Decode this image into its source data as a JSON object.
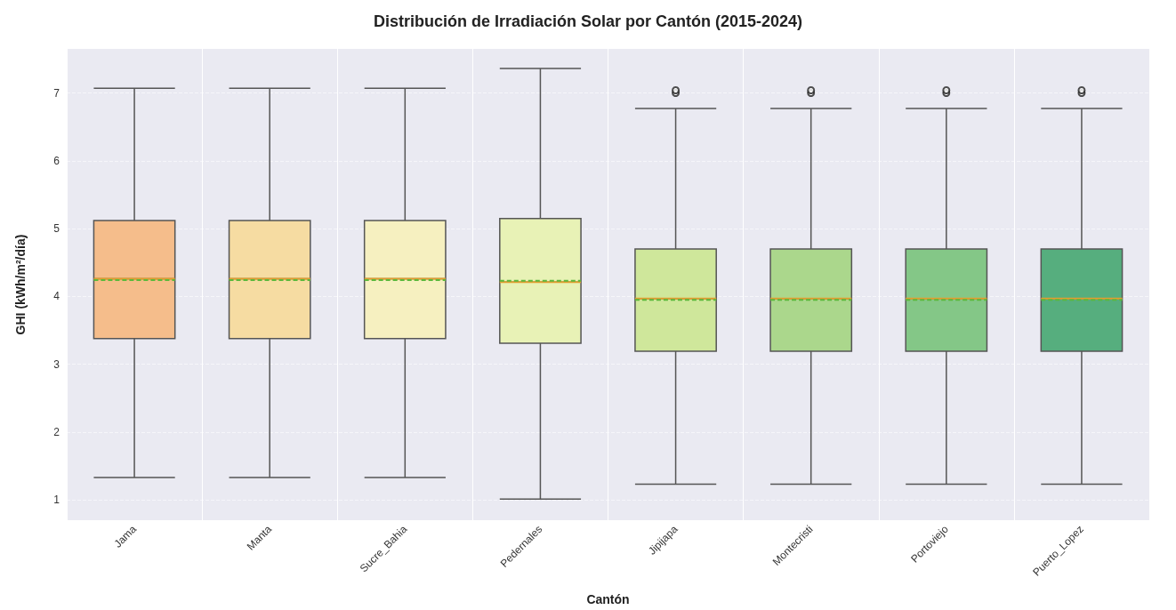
{
  "chart_data": {
    "type": "box",
    "title": "Distribución de Irradiación Solar por Cantón (2015-2024)",
    "xlabel": "Cantón",
    "ylabel": "GHI (kWh/m²/día)",
    "categories": [
      "Jama",
      "Manta",
      "Sucre_Bahia",
      "Pedernales",
      "Jipijapa",
      "Montecristi",
      "Portoviejo",
      "Puerto_Lopez"
    ],
    "colors": [
      "#f5bd8b",
      "#f6dca2",
      "#f6f0c0",
      "#e8f2b6",
      "#cfe79b",
      "#abd78c",
      "#84c787",
      "#56ae7e"
    ],
    "boxes": [
      {
        "low": 1.33,
        "q1": 3.38,
        "median": 4.26,
        "q3": 5.12,
        "high": 7.07,
        "mean": 4.24
      },
      {
        "low": 1.33,
        "q1": 3.38,
        "median": 4.26,
        "q3": 5.12,
        "high": 7.07,
        "mean": 4.24
      },
      {
        "low": 1.33,
        "q1": 3.38,
        "median": 4.26,
        "q3": 5.12,
        "high": 7.07,
        "mean": 4.24
      },
      {
        "low": 1.01,
        "q1": 3.31,
        "median": 4.21,
        "q3": 5.15,
        "high": 7.36,
        "mean": 4.23
      },
      {
        "low": 1.23,
        "q1": 3.19,
        "median": 3.97,
        "q3": 4.7,
        "high": 6.77,
        "mean": 3.95,
        "outliers": [
          7.0,
          7.04
        ]
      },
      {
        "low": 1.23,
        "q1": 3.19,
        "median": 3.97,
        "q3": 4.7,
        "high": 6.77,
        "mean": 3.95,
        "outliers": [
          7.0,
          7.04
        ]
      },
      {
        "low": 1.23,
        "q1": 3.19,
        "median": 3.97,
        "q3": 4.7,
        "high": 6.77,
        "mean": 3.95,
        "outliers": [
          7.0,
          7.04
        ]
      },
      {
        "low": 1.23,
        "q1": 3.19,
        "median": 3.97,
        "q3": 4.7,
        "high": 6.77,
        "mean": 3.95,
        "outliers": [
          7.0,
          7.04
        ]
      }
    ],
    "ylim": [
      0.7,
      7.65
    ],
    "yticks": [
      1,
      2,
      3,
      4,
      5,
      6,
      7
    ],
    "grid": true,
    "marker": "circle"
  }
}
